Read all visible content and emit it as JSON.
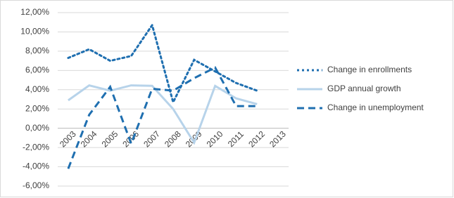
{
  "chart_data": {
    "type": "line",
    "categories": [
      "2003",
      "2004",
      "2005",
      "2006",
      "2007",
      "2008",
      "2009",
      "2010",
      "2011",
      "2012",
      "2013"
    ],
    "series": [
      {
        "name": "Change in enrollments",
        "color": "#1f6fb0",
        "style": "dotted",
        "values": [
          7.3,
          8.2,
          7.0,
          7.5,
          10.7,
          2.7,
          7.1,
          5.9,
          4.7,
          3.9,
          null
        ]
      },
      {
        "name": "GDP annual growth",
        "color": "#b7d3ea",
        "style": "solid",
        "values": [
          2.9,
          4.45,
          3.9,
          4.45,
          4.4,
          2.0,
          -1.5,
          4.4,
          3.1,
          2.5,
          null
        ]
      },
      {
        "name": "Change in unemployment",
        "color": "#1f6fb0",
        "style": "dashed",
        "values": [
          -4.2,
          1.4,
          4.3,
          -1.6,
          4.1,
          3.9,
          5.2,
          6.3,
          2.3,
          2.3,
          null
        ]
      }
    ],
    "ylim": [
      -6,
      12
    ],
    "yticks": [
      {
        "value": -6,
        "label": "-6,00%"
      },
      {
        "value": -4,
        "label": "-4,00%"
      },
      {
        "value": -2,
        "label": "-2,00%"
      },
      {
        "value": 0,
        "label": "0,00%"
      },
      {
        "value": 2,
        "label": "2,00%"
      },
      {
        "value": 4,
        "label": "4,00%"
      },
      {
        "value": 6,
        "label": "6,00%"
      },
      {
        "value": 8,
        "label": "8,00%"
      },
      {
        "value": 10,
        "label": "10,00%"
      },
      {
        "value": 12,
        "label": "12,00%"
      }
    ],
    "grid": true,
    "legend": "right"
  }
}
